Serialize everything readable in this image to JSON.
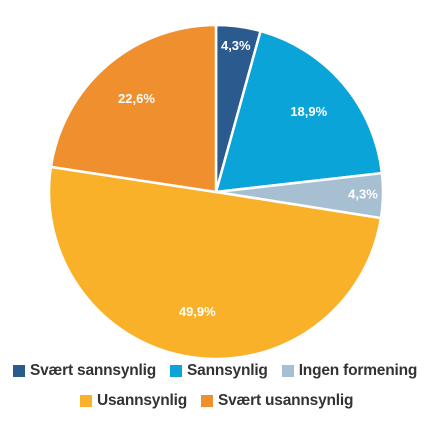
{
  "chart_data": {
    "type": "pie",
    "title": "",
    "start_angle_deg": 0,
    "direction": "clockwise",
    "label_color": "#ffffff",
    "slices": [
      {
        "name": "Svært sannsynlig",
        "value": 4.3,
        "label": "4,3%",
        "color": "#2b5a8f"
      },
      {
        "name": "Sannsynlig",
        "value": 18.9,
        "label": "18,9%",
        "color": "#0aa4d9"
      },
      {
        "name": "Ingen formening",
        "value": 4.3,
        "label": "4,3%",
        "color": "#a7c0d1"
      },
      {
        "name": "Usannsynlig",
        "value": 49.9,
        "label": "49,9%",
        "color": "#f9b12a"
      },
      {
        "name": "Svært usannsynlig",
        "value": 22.6,
        "label": "22,6%",
        "color": "#f08f2d"
      }
    ]
  },
  "legend": {
    "row1": [
      {
        "label": "Svært sannsynlig",
        "color": "#2b5a8f"
      },
      {
        "label": "Sannsynlig",
        "color": "#0aa4d9"
      },
      {
        "label": "Ingen formening",
        "color": "#a7c0d1"
      }
    ],
    "row2": [
      {
        "label": "Usannsynlig",
        "color": "#f9b12a"
      },
      {
        "label": "Svært usannsynlig",
        "color": "#f08f2d"
      }
    ]
  }
}
